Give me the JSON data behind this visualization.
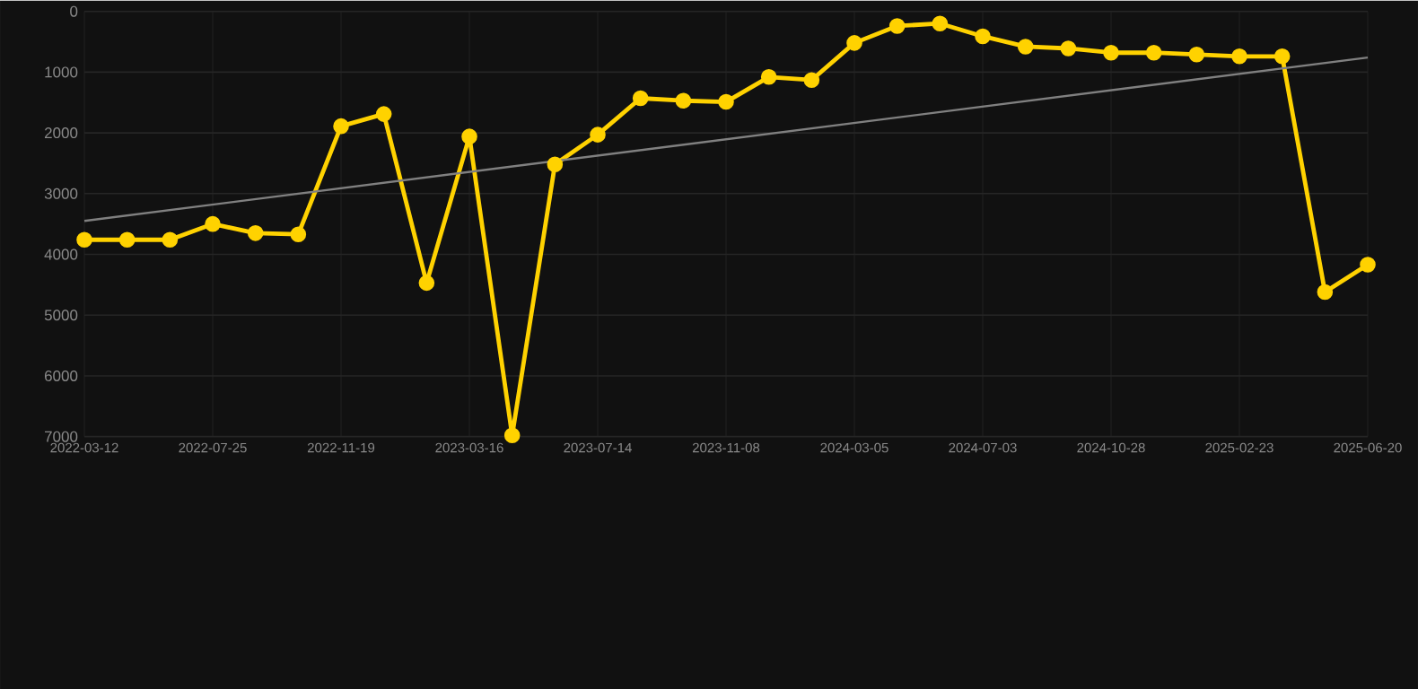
{
  "chart_data": {
    "type": "line",
    "categories": [
      "2022-03-12",
      null,
      null,
      "2022-07-25",
      null,
      null,
      "2022-11-19",
      null,
      null,
      "2023-03-16",
      null,
      null,
      "2023-07-14",
      null,
      null,
      "2023-11-08",
      null,
      null,
      "2024-03-05",
      null,
      null,
      "2024-07-03",
      null,
      null,
      "2024-10-28",
      null,
      null,
      "2025-02-23",
      null,
      null,
      "2025-06-20"
    ],
    "series": [
      {
        "color": "#ffd200",
        "marker": "circle",
        "values": [
          3760,
          3760,
          3760,
          3500,
          3650,
          3670,
          1890,
          1690,
          4470,
          2060,
          6980,
          2520,
          2030,
          1430,
          1470,
          1490,
          1080,
          1130,
          520,
          240,
          200,
          410,
          580,
          610,
          680,
          680,
          710,
          740,
          740,
          4620,
          4170
        ]
      },
      {
        "type": "line",
        "color": "#808080",
        "marker": "none",
        "values": [
          3450,
          null,
          null,
          null,
          null,
          null,
          null,
          null,
          null,
          null,
          null,
          null,
          null,
          null,
          null,
          null,
          null,
          null,
          null,
          null,
          null,
          null,
          null,
          null,
          null,
          null,
          null,
          null,
          null,
          null,
          760
        ]
      }
    ],
    "ylim": [
      7000,
      0
    ],
    "yticks": [
      0,
      1000,
      2000,
      3000,
      4000,
      5000,
      6000,
      7000
    ],
    "grid": true
  }
}
